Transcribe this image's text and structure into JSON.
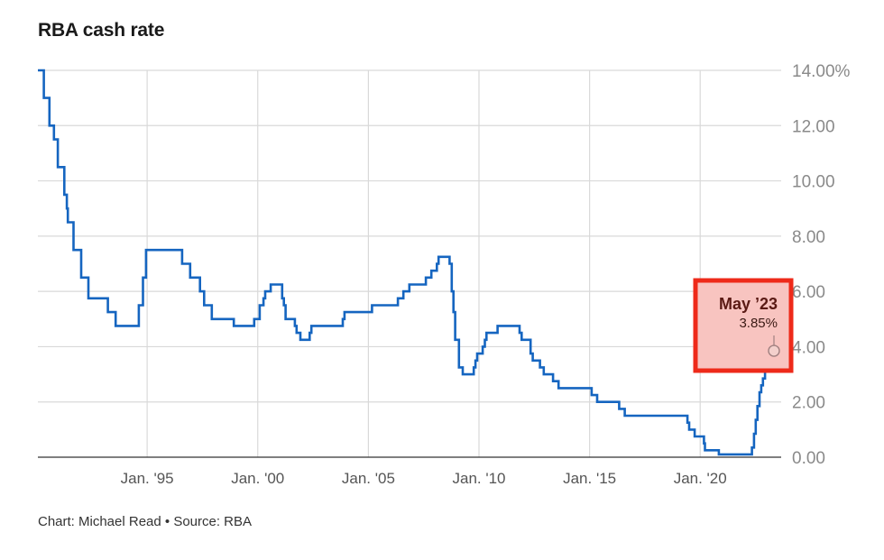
{
  "title": "RBA cash rate",
  "source": "Chart: Michael Read • Source: RBA",
  "colors": {
    "line": "#1565c0",
    "grid": "#d9d9d9",
    "annotation_fill": "#f8c4c0",
    "annotation_border": "#ee2a1a"
  },
  "chart_data": {
    "type": "line",
    "title": "RBA cash rate",
    "xlabel": "",
    "ylabel": "",
    "x_axis": "date",
    "xlim": [
      "1990-01-23",
      "2023-05-03"
    ],
    "ylim": [
      0,
      14
    ],
    "y_tick_values": [
      0,
      2,
      4,
      6,
      8,
      10,
      12,
      14
    ],
    "y_tick_labels": [
      "0.00",
      "2.00",
      "4.00",
      "6.00",
      "8.00",
      "10.00",
      "12.00",
      "14.00%"
    ],
    "x_tick_values": [
      "1995-01-01",
      "2000-01-01",
      "2005-01-01",
      "2010-01-01",
      "2015-01-01",
      "2020-01-01"
    ],
    "x_tick_labels": [
      "Jan. '95",
      "Jan. '00",
      "Jan. '05",
      "Jan. '10",
      "Jan. '15",
      "Jan. '20"
    ],
    "grid": "vertical and horizontal",
    "step": "after",
    "series": [
      {
        "points": [
          [
            "1990-01-23",
            14.0
          ],
          [
            "1990-05-01",
            13.0
          ],
          [
            "1990-08-01",
            12.0
          ],
          [
            "1990-10-15",
            11.5
          ],
          [
            "1990-12-18",
            10.5
          ],
          [
            "1991-04-04",
            9.5
          ],
          [
            "1991-05-16",
            9.0
          ],
          [
            "1991-06-01",
            8.5
          ],
          [
            "1991-09-03",
            7.5
          ],
          [
            "1991-11-06",
            7.5
          ],
          [
            "1992-01-08",
            6.5
          ],
          [
            "1992-05-06",
            5.75
          ],
          [
            "1992-07-08",
            5.75
          ],
          [
            "1993-03-23",
            5.25
          ],
          [
            "1993-07-30",
            4.75
          ],
          [
            "1994-08-17",
            5.5
          ],
          [
            "1994-10-24",
            6.5
          ],
          [
            "1994-12-14",
            7.5
          ],
          [
            "1996-07-31",
            7.0
          ],
          [
            "1996-12-11",
            6.5
          ],
          [
            "1997-05-23",
            6.0
          ],
          [
            "1997-07-30",
            5.5
          ],
          [
            "1997-12-03",
            5.0
          ],
          [
            "1998-12-02",
            4.75
          ],
          [
            "1999-11-03",
            5.0
          ],
          [
            "2000-02-02",
            5.5
          ],
          [
            "2000-04-05",
            5.75
          ],
          [
            "2000-05-03",
            6.0
          ],
          [
            "2000-08-02",
            6.25
          ],
          [
            "2001-02-07",
            5.75
          ],
          [
            "2001-03-07",
            5.5
          ],
          [
            "2001-04-04",
            5.0
          ],
          [
            "2001-09-05",
            4.75
          ],
          [
            "2001-10-03",
            4.5
          ],
          [
            "2001-12-05",
            4.25
          ],
          [
            "2002-05-08",
            4.5
          ],
          [
            "2002-06-05",
            4.75
          ],
          [
            "2003-11-05",
            5.0
          ],
          [
            "2003-12-03",
            5.25
          ],
          [
            "2005-03-02",
            5.5
          ],
          [
            "2006-05-03",
            5.75
          ],
          [
            "2006-08-02",
            6.0
          ],
          [
            "2006-11-08",
            6.25
          ],
          [
            "2007-08-08",
            6.5
          ],
          [
            "2007-11-07",
            6.75
          ],
          [
            "2008-02-06",
            7.0
          ],
          [
            "2008-03-05",
            7.25
          ],
          [
            "2008-09-03",
            7.0
          ],
          [
            "2008-10-08",
            6.0
          ],
          [
            "2008-11-05",
            5.25
          ],
          [
            "2008-12-03",
            4.25
          ],
          [
            "2009-02-04",
            3.25
          ],
          [
            "2009-04-08",
            3.0
          ],
          [
            "2009-10-07",
            3.25
          ],
          [
            "2009-11-04",
            3.5
          ],
          [
            "2009-12-02",
            3.75
          ],
          [
            "2010-03-03",
            4.0
          ],
          [
            "2010-04-07",
            4.25
          ],
          [
            "2010-05-05",
            4.5
          ],
          [
            "2010-11-03",
            4.75
          ],
          [
            "2011-11-02",
            4.5
          ],
          [
            "2011-12-07",
            4.25
          ],
          [
            "2012-05-02",
            3.75
          ],
          [
            "2012-06-06",
            3.5
          ],
          [
            "2012-10-03",
            3.25
          ],
          [
            "2012-12-05",
            3.0
          ],
          [
            "2013-05-08",
            2.75
          ],
          [
            "2013-08-07",
            2.5
          ],
          [
            "2015-02-04",
            2.25
          ],
          [
            "2015-05-06",
            2.0
          ],
          [
            "2016-05-04",
            1.75
          ],
          [
            "2016-08-03",
            1.5
          ],
          [
            "2019-06-05",
            1.25
          ],
          [
            "2019-07-03",
            1.0
          ],
          [
            "2019-10-02",
            0.75
          ],
          [
            "2020-03-04",
            0.5
          ],
          [
            "2020-03-20",
            0.25
          ],
          [
            "2020-11-04",
            0.1
          ],
          [
            "2022-05-04",
            0.35
          ],
          [
            "2022-06-08",
            0.85
          ],
          [
            "2022-07-06",
            1.35
          ],
          [
            "2022-08-03",
            1.85
          ],
          [
            "2022-09-07",
            2.35
          ],
          [
            "2022-10-05",
            2.6
          ],
          [
            "2022-11-02",
            2.85
          ],
          [
            "2022-12-07",
            3.1
          ],
          [
            "2023-02-08",
            3.35
          ],
          [
            "2023-03-08",
            3.6
          ],
          [
            "2023-05-03",
            3.85
          ]
        ]
      }
    ],
    "annotation": {
      "x": "2023-05-03",
      "y": 3.85,
      "date_label": "May ’23",
      "value_label": "3.85%"
    }
  }
}
